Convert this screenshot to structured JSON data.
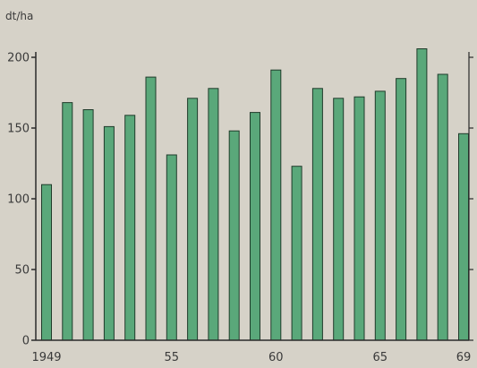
{
  "chart_data": {
    "type": "bar",
    "title": "",
    "xlabel": "",
    "ylabel": "dt/ha",
    "years": [
      1949,
      1950,
      1951,
      1952,
      1953,
      1954,
      1955,
      1956,
      1957,
      1958,
      1959,
      1960,
      1961,
      1962,
      1963,
      1964,
      1965,
      1966,
      1967,
      1968,
      1969
    ],
    "values": [
      110,
      168,
      163,
      151,
      159,
      186,
      131,
      171,
      178,
      148,
      161,
      191,
      123,
      178,
      171,
      172,
      176,
      185,
      206,
      188,
      146
    ],
    "x_tick_labels": [
      {
        "year": 1949,
        "label": "1949"
      },
      {
        "year": 1955,
        "label": "55"
      },
      {
        "year": 1960,
        "label": "60"
      },
      {
        "year": 1965,
        "label": "65"
      },
      {
        "year": 1969,
        "label": "69"
      }
    ],
    "y_ticks": [
      0,
      50,
      100,
      150,
      200
    ],
    "ylim": [
      0,
      210
    ],
    "grid": false,
    "colors": {
      "bar_fill": "#5aa87a",
      "bar_stroke": "#1f3b2a",
      "axis": "#2a2a2a"
    }
  }
}
